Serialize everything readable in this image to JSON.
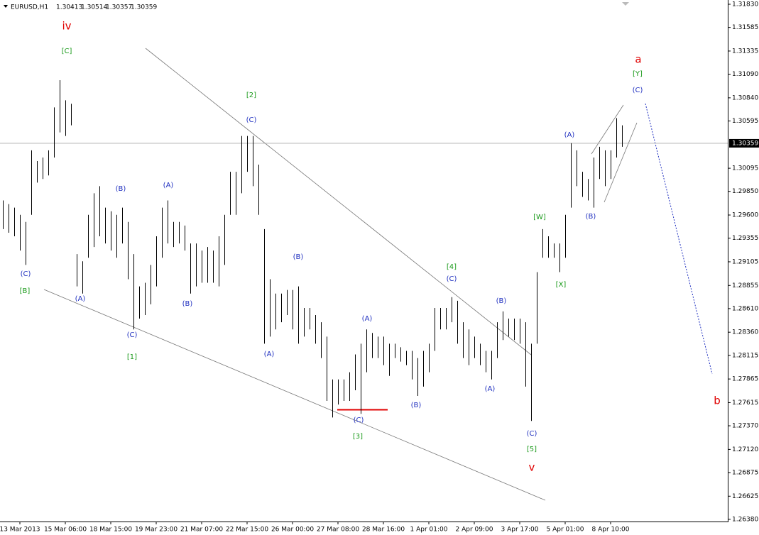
{
  "chart_data": {
    "type": "hlbar",
    "header": {
      "symbol": "EURUSD,H1",
      "values": [
        1.30413,
        1.30514,
        1.30357,
        1.30359
      ]
    },
    "current_price": 1.30359,
    "ylim": [
      1.26357,
      1.31875
    ],
    "yticks": [
      {
        "value": 1.3183,
        "label": "1.31830"
      },
      {
        "value": 1.31585,
        "label": "1.31585"
      },
      {
        "value": 1.31335,
        "label": "1.31335"
      },
      {
        "value": 1.3109,
        "label": "1.31090"
      },
      {
        "value": 1.3084,
        "label": "1.30840"
      },
      {
        "value": 1.30595,
        "label": "1.30595"
      },
      {
        "value": 1.30095,
        "label": "1.30095"
      },
      {
        "value": 1.2985,
        "label": "1.29850"
      },
      {
        "value": 1.296,
        "label": "1.29600"
      },
      {
        "value": 1.29355,
        "label": "1.29355"
      },
      {
        "value": 1.29105,
        "label": "1.29105"
      },
      {
        "value": 1.28855,
        "label": "1.28855"
      },
      {
        "value": 1.2861,
        "label": "1.28610"
      },
      {
        "value": 1.2836,
        "label": "1.28360"
      },
      {
        "value": 1.28115,
        "label": "1.28115"
      },
      {
        "value": 1.27865,
        "label": "1.27865"
      },
      {
        "value": 1.27615,
        "label": "1.27615"
      },
      {
        "value": 1.2737,
        "label": "1.27370"
      },
      {
        "value": 1.2712,
        "label": "1.27120"
      },
      {
        "value": 1.26875,
        "label": "1.26875"
      },
      {
        "value": 1.26625,
        "label": "1.26625"
      },
      {
        "value": 1.2638,
        "label": "1.26380"
      }
    ],
    "categories": [
      null,
      null,
      null,
      "13 Mar 2013",
      null,
      null,
      null,
      null,
      null,
      null,
      null,
      "15 Mar 06:00",
      null,
      null,
      null,
      null,
      null,
      null,
      null,
      "18 Mar 15:00",
      null,
      null,
      null,
      null,
      null,
      null,
      null,
      "19 Mar 23:00",
      null,
      null,
      null,
      null,
      null,
      null,
      null,
      "21 Mar 07:00",
      null,
      null,
      null,
      null,
      null,
      null,
      null,
      "22 Mar 15:00",
      null,
      null,
      null,
      null,
      null,
      null,
      null,
      "26 Mar 00:00",
      null,
      null,
      null,
      null,
      null,
      null,
      null,
      "27 Mar 08:00",
      null,
      null,
      null,
      null,
      null,
      null,
      null,
      "28 Mar 16:00",
      null,
      null,
      null,
      null,
      null,
      null,
      null,
      "1 Apr 01:00",
      null,
      null,
      null,
      null,
      null,
      null,
      null,
      "2 Apr 09:00",
      null,
      null,
      null,
      null,
      null,
      null,
      null,
      "3 Apr 17:00",
      null,
      null,
      null,
      null,
      null,
      null,
      null,
      "5 Apr 01:00",
      null,
      null,
      null,
      null,
      null,
      null,
      null,
      "8 Apr 10:00",
      null,
      null
    ],
    "high": [
      1.29754,
      1.29716,
      1.29678,
      1.29602,
      1.29527,
      1.30284,
      1.30171,
      1.30208,
      1.30284,
      1.30739,
      1.31027,
      1.30814,
      1.30777,
      1.29186,
      1.2911,
      1.29602,
      1.2983,
      1.29905,
      1.29678,
      1.2964,
      1.29602,
      1.29678,
      1.29527,
      1.29186,
      1.28845,
      1.28883,
      1.29072,
      1.29375,
      1.29678,
      1.29754,
      1.29527,
      1.29527,
      1.29489,
      1.29299,
      1.29299,
      1.29224,
      1.29261,
      1.29224,
      1.29375,
      1.29602,
      1.30057,
      1.30057,
      1.30436,
      1.30436,
      1.30436,
      1.30133,
      1.29451,
      1.28921,
      1.28769,
      1.28769,
      1.28807,
      1.28807,
      1.28845,
      1.28617,
      1.28617,
      1.28542,
      1.28466,
      1.28314,
      1.2786,
      1.2786,
      1.2786,
      1.27936,
      1.28125,
      1.28239,
      1.2839,
      1.28352,
      1.28314,
      1.28314,
      1.28239,
      1.28239,
      1.28201,
      1.28163,
      1.28163,
      1.28087,
      1.28163,
      1.28239,
      1.28617,
      1.28617,
      1.28617,
      1.28731,
      1.28693,
      1.28466,
      1.2839,
      1.28314,
      1.28239,
      1.28163,
      1.28163,
      1.28466,
      1.2858,
      1.28504,
      1.28504,
      1.28504,
      1.28466,
      1.28239,
      1.28996,
      1.29451,
      1.29375,
      1.29299,
      1.29299,
      1.29602,
      1.3036,
      1.30284,
      1.30057,
      1.29981,
      1.30208,
      1.30322,
      1.30284,
      1.30284,
      1.30625,
      1.30549
    ],
    "low": [
      1.29451,
      1.29413,
      1.29375,
      1.29224,
      1.29072,
      1.29602,
      1.29943,
      1.29981,
      1.30019,
      1.30208,
      1.30474,
      1.30436,
      1.30549,
      1.28845,
      1.28769,
      1.29148,
      1.29261,
      1.29375,
      1.29299,
      1.29224,
      1.29148,
      1.29299,
      1.28921,
      1.2839,
      1.28504,
      1.28542,
      1.28655,
      1.28845,
      1.29148,
      1.29299,
      1.29261,
      1.29299,
      1.29224,
      1.28769,
      1.28845,
      1.28883,
      1.28883,
      1.28883,
      1.28845,
      1.29072,
      1.29602,
      1.29602,
      1.2983,
      1.30057,
      1.29905,
      1.29602,
      1.28239,
      1.28314,
      1.2839,
      1.28466,
      1.28542,
      1.2839,
      1.28239,
      1.28314,
      1.2839,
      1.28239,
      1.28087,
      1.27633,
      1.27458,
      1.27595,
      1.27633,
      1.27633,
      1.27746,
      1.27496,
      1.27936,
      1.28087,
      1.28087,
      1.28011,
      1.27898,
      1.28087,
      1.28049,
      1.28011,
      1.2786,
      1.27686,
      1.27784,
      1.27936,
      1.28163,
      1.2839,
      1.2839,
      1.28466,
      1.28239,
      1.28087,
      1.28011,
      1.28087,
      1.28011,
      1.27936,
      1.2786,
      1.28087,
      1.28277,
      1.28314,
      1.28277,
      1.28239,
      1.27784,
      1.27421,
      1.28239,
      1.29148,
      1.29148,
      1.29148,
      1.28996,
      1.29148,
      1.29678,
      1.29905,
      1.29792,
      1.29754,
      1.29678,
      1.29981,
      1.29905,
      1.29981,
      1.30208,
      1.30322
    ],
    "annotations": [
      {
        "text": "iv",
        "color": "#e00000"
      },
      {
        "text": "[C]",
        "color": "#1a9a1a"
      },
      {
        "text": "(C)",
        "color": "#2030c0"
      },
      {
        "text": "[B]",
        "color": "#1a9a1a"
      },
      {
        "text": "(A)",
        "color": "#2030c0"
      },
      {
        "text": "(B)",
        "color": "#2030c0"
      },
      {
        "text": "(C)",
        "color": "#2030c0"
      },
      {
        "text": "[1]",
        "color": "#1a9a1a"
      },
      {
        "text": "(A)",
        "color": "#2030c0"
      },
      {
        "text": "(B)",
        "color": "#2030c0"
      },
      {
        "text": "[2]",
        "color": "#1a9a1a"
      },
      {
        "text": "(C)",
        "color": "#2030c0"
      },
      {
        "text": "(B)",
        "color": "#2030c0"
      },
      {
        "text": "(A)",
        "color": "#2030c0"
      },
      {
        "text": "(A)",
        "color": "#2030c0"
      },
      {
        "text": "(C)",
        "color": "#2030c0"
      },
      {
        "text": "[3]",
        "color": "#1a9a1a"
      },
      {
        "text": "(B)",
        "color": "#2030c0"
      },
      {
        "text": "[4]",
        "color": "#1a9a1a"
      },
      {
        "text": "(C)",
        "color": "#2030c0"
      },
      {
        "text": "(B)",
        "color": "#2030c0"
      },
      {
        "text": "(A)",
        "color": "#2030c0"
      },
      {
        "text": "(C)",
        "color": "#2030c0"
      },
      {
        "text": "[5]",
        "color": "#1a9a1a"
      },
      {
        "text": "v",
        "color": "#e00000"
      },
      {
        "text": "[W]",
        "color": "#1a9a1a"
      },
      {
        "text": "[X]",
        "color": "#1a9a1a"
      },
      {
        "text": "(A)",
        "color": "#2030c0"
      },
      {
        "text": "(B)",
        "color": "#2030c0"
      },
      {
        "text": "a",
        "color": "#e00000"
      },
      {
        "text": "[Y]",
        "color": "#1a9a1a"
      },
      {
        "text": "(C)",
        "color": "#2030c0"
      },
      {
        "text": "b",
        "color": "#e00000"
      }
    ]
  }
}
